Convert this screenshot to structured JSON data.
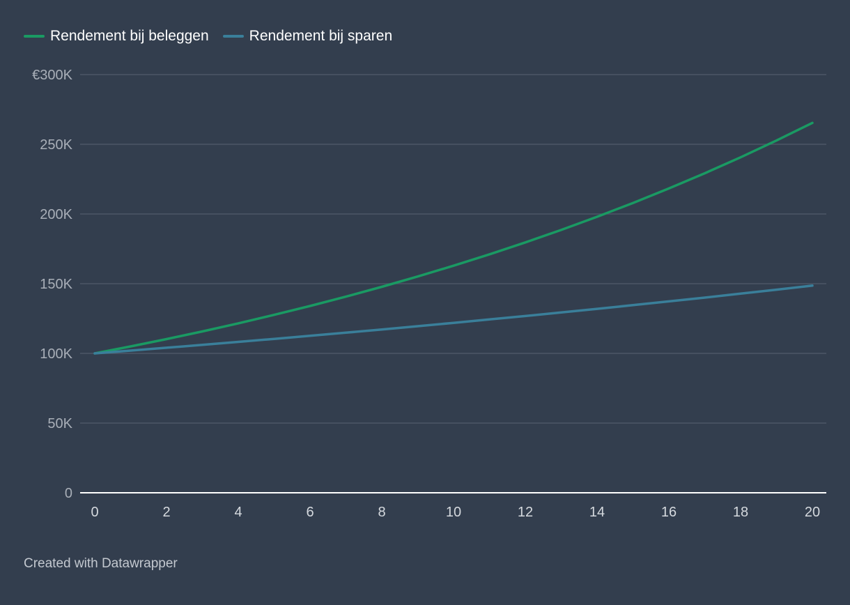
{
  "chart_data": {
    "type": "line",
    "title": "",
    "xlabel": "",
    "ylabel": "",
    "x": [
      0,
      1,
      2,
      3,
      4,
      5,
      6,
      7,
      8,
      9,
      10,
      11,
      12,
      13,
      14,
      15,
      16,
      17,
      18,
      19,
      20
    ],
    "series": [
      {
        "name": "Rendement bij beleggen",
        "color": "#1a9a63",
        "values": [
          100000,
          105000,
          110250,
          115763,
          121551,
          127628,
          134010,
          140710,
          147746,
          155133,
          162889,
          171034,
          179586,
          188565,
          197993,
          207893,
          218287,
          229202,
          240662,
          252695,
          265330
        ]
      },
      {
        "name": "Rendement bij sparen",
        "color": "#3a7f9a",
        "values": [
          100000,
          102000,
          104040,
          106121,
          108243,
          110408,
          112616,
          114869,
          117166,
          119509,
          121899,
          124337,
          126824,
          129361,
          131948,
          134587,
          137279,
          140024,
          142825,
          145681,
          148595
        ]
      }
    ],
    "xlim": [
      0,
      20
    ],
    "ylim": [
      0,
      300000
    ],
    "x_ticks": [
      0,
      2,
      4,
      6,
      8,
      10,
      12,
      14,
      16,
      18,
      20
    ],
    "x_tick_labels": [
      "0",
      "2",
      "4",
      "6",
      "8",
      "10",
      "12",
      "14",
      "16",
      "18",
      "20"
    ],
    "y_ticks": [
      0,
      50000,
      100000,
      150000,
      200000,
      250000,
      300000
    ],
    "y_tick_labels": [
      "0",
      "50K",
      "100K",
      "150K",
      "200K",
      "250K",
      "€300K"
    ],
    "grid": true,
    "legend_position": "top-left"
  },
  "footer": "Created with Datawrapper",
  "colors": {
    "background": "#333e4e",
    "grid": "#4c5666",
    "axis": "#ffffff",
    "tick_text": "#a9afb8"
  }
}
